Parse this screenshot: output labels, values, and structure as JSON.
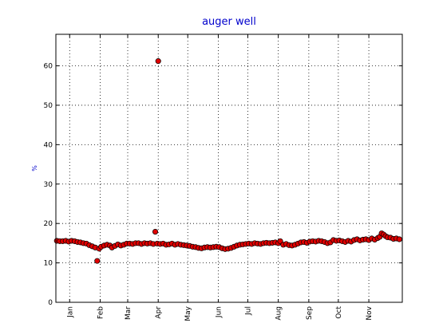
{
  "chart_data": {
    "type": "scatter",
    "title": "auger well",
    "ylabel": "%",
    "xlabel": "",
    "ylim": [
      0,
      68
    ],
    "yticks": [
      0,
      10,
      20,
      30,
      40,
      50,
      60
    ],
    "grid": true,
    "colors": {
      "title": "#0000cc",
      "ylabel": "#0000cc",
      "marker_fill": "#e00000",
      "marker_edge": "#000000",
      "grid": "#000000",
      "frame": "#000000"
    },
    "month_labels": [
      {
        "label": "Jan",
        "day": 14
      },
      {
        "label": "Feb",
        "day": 45
      },
      {
        "label": "Mar",
        "day": 73
      },
      {
        "label": "Apr",
        "day": 104
      },
      {
        "label": "May",
        "day": 134
      },
      {
        "label": "Jun",
        "day": 165
      },
      {
        "label": "Jul",
        "day": 195
      },
      {
        "label": "Aug",
        "day": 226
      },
      {
        "label": "Sep",
        "day": 257
      },
      {
        "label": "Oct",
        "day": 287
      },
      {
        "label": "Nov",
        "day": 318
      }
    ],
    "x_range_days": [
      0,
      352
    ],
    "series": [
      {
        "values": [
          [
            1,
            15.6
          ],
          [
            4,
            15.5
          ],
          [
            7,
            15.5
          ],
          [
            10,
            15.6
          ],
          [
            13,
            15.4
          ],
          [
            16,
            15.6
          ],
          [
            19,
            15.5
          ],
          [
            22,
            15.3
          ],
          [
            25,
            15.2
          ],
          [
            28,
            15.0
          ],
          [
            31,
            14.9
          ],
          [
            34,
            14.5
          ],
          [
            37,
            14.2
          ],
          [
            40,
            13.9
          ],
          [
            42,
            10.5
          ],
          [
            44,
            13.6
          ],
          [
            46,
            14.1
          ],
          [
            49,
            14.4
          ],
          [
            52,
            14.6
          ],
          [
            55,
            14.4
          ],
          [
            57,
            13.9
          ],
          [
            60,
            14.3
          ],
          [
            63,
            14.7
          ],
          [
            66,
            14.4
          ],
          [
            69,
            14.6
          ],
          [
            72,
            14.9
          ],
          [
            75,
            14.9
          ],
          [
            78,
            14.8
          ],
          [
            81,
            15.0
          ],
          [
            84,
            15.0
          ],
          [
            87,
            14.8
          ],
          [
            90,
            15.0
          ],
          [
            93,
            14.9
          ],
          [
            96,
            15.0
          ],
          [
            99,
            14.8
          ],
          [
            101,
            17.9
          ],
          [
            103,
            14.9
          ],
          [
            104,
            61.2
          ],
          [
            106,
            14.8
          ],
          [
            109,
            14.9
          ],
          [
            112,
            14.6
          ],
          [
            115,
            14.7
          ],
          [
            118,
            14.9
          ],
          [
            121,
            14.6
          ],
          [
            124,
            14.8
          ],
          [
            127,
            14.6
          ],
          [
            130,
            14.5
          ],
          [
            133,
            14.4
          ],
          [
            136,
            14.3
          ],
          [
            139,
            14.1
          ],
          [
            142,
            14.0
          ],
          [
            145,
            13.8
          ],
          [
            148,
            13.7
          ],
          [
            151,
            13.9
          ],
          [
            154,
            14.0
          ],
          [
            157,
            13.9
          ],
          [
            160,
            14.0
          ],
          [
            163,
            14.1
          ],
          [
            166,
            14.0
          ],
          [
            169,
            13.7
          ],
          [
            172,
            13.5
          ],
          [
            175,
            13.6
          ],
          [
            178,
            13.8
          ],
          [
            181,
            14.1
          ],
          [
            184,
            14.4
          ],
          [
            187,
            14.6
          ],
          [
            190,
            14.7
          ],
          [
            193,
            14.8
          ],
          [
            196,
            14.9
          ],
          [
            199,
            14.8
          ],
          [
            202,
            15.0
          ],
          [
            205,
            14.9
          ],
          [
            208,
            14.8
          ],
          [
            211,
            15.0
          ],
          [
            214,
            15.1
          ],
          [
            217,
            15.0
          ],
          [
            220,
            15.1
          ],
          [
            223,
            15.2
          ],
          [
            226,
            15.0
          ],
          [
            228,
            15.5
          ],
          [
            231,
            14.6
          ],
          [
            234,
            14.8
          ],
          [
            237,
            14.5
          ],
          [
            240,
            14.4
          ],
          [
            243,
            14.6
          ],
          [
            246,
            14.9
          ],
          [
            249,
            15.2
          ],
          [
            252,
            15.3
          ],
          [
            255,
            15.1
          ],
          [
            258,
            15.4
          ],
          [
            261,
            15.5
          ],
          [
            264,
            15.4
          ],
          [
            267,
            15.6
          ],
          [
            270,
            15.5
          ],
          [
            273,
            15.3
          ],
          [
            276,
            15.0
          ],
          [
            279,
            15.2
          ],
          [
            282,
            15.8
          ],
          [
            285,
            15.6
          ],
          [
            288,
            15.7
          ],
          [
            291,
            15.5
          ],
          [
            294,
            15.3
          ],
          [
            297,
            15.6
          ],
          [
            300,
            15.4
          ],
          [
            303,
            15.8
          ],
          [
            306,
            16.0
          ],
          [
            309,
            15.7
          ],
          [
            312,
            15.9
          ],
          [
            315,
            16.0
          ],
          [
            318,
            15.8
          ],
          [
            321,
            16.2
          ],
          [
            324,
            15.9
          ],
          [
            327,
            16.3
          ],
          [
            329,
            16.6
          ],
          [
            331,
            17.5
          ],
          [
            333,
            17.2
          ],
          [
            335,
            16.8
          ],
          [
            337,
            16.5
          ],
          [
            340,
            16.4
          ],
          [
            343,
            16.1
          ],
          [
            346,
            16.2
          ],
          [
            349,
            16.0
          ]
        ]
      }
    ]
  }
}
